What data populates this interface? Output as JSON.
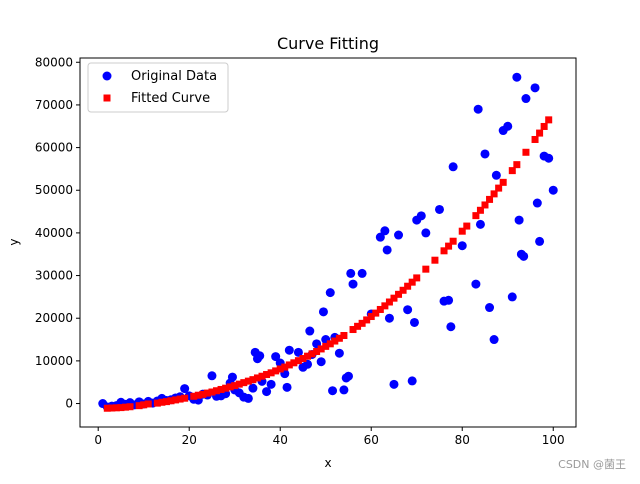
{
  "chart_data": {
    "type": "scatter",
    "title": "Curve Fitting",
    "xlabel": "x",
    "ylabel": "y",
    "xlim": [
      -4,
      105
    ],
    "ylim": [
      -5500,
      81000
    ],
    "xticks": [
      0,
      20,
      40,
      60,
      80,
      100
    ],
    "xtick_labels": [
      "0",
      "20",
      "40",
      "60",
      "80",
      "100"
    ],
    "yticks": [
      0,
      10000,
      20000,
      30000,
      40000,
      50000,
      60000,
      70000,
      80000
    ],
    "ytick_labels": [
      "0",
      "10000",
      "20000",
      "30000",
      "40000",
      "50000",
      "60000",
      "70000",
      "80000"
    ],
    "grid": false,
    "legend_position": "top-left",
    "series": [
      {
        "name": "Original Data",
        "marker": "circle",
        "color": "#0000ff",
        "points": [
          [
            1,
            0
          ],
          [
            2,
            -800
          ],
          [
            3,
            -600
          ],
          [
            4,
            -500
          ],
          [
            5,
            300
          ],
          [
            6,
            -200
          ],
          [
            7,
            200
          ],
          [
            8,
            -300
          ],
          [
            9,
            400
          ],
          [
            10,
            -100
          ],
          [
            11,
            500
          ],
          [
            12,
            100
          ],
          [
            13,
            600
          ],
          [
            14,
            1200
          ],
          [
            15,
            700
          ],
          [
            16,
            900
          ],
          [
            17,
            1300
          ],
          [
            18,
            1600
          ],
          [
            19,
            3500
          ],
          [
            20,
            1800
          ],
          [
            21,
            1000
          ],
          [
            22,
            800
          ],
          [
            23,
            2200
          ],
          [
            24,
            2000
          ],
          [
            25,
            6500
          ],
          [
            26,
            1700
          ],
          [
            27,
            1800
          ],
          [
            28,
            2300
          ],
          [
            29,
            4800
          ],
          [
            29.5,
            6200
          ],
          [
            30,
            3200
          ],
          [
            31,
            2500
          ],
          [
            32,
            1500
          ],
          [
            33,
            1200
          ],
          [
            34,
            3600
          ],
          [
            34.5,
            12000
          ],
          [
            35,
            10500
          ],
          [
            35.5,
            11200
          ],
          [
            36,
            5200
          ],
          [
            37,
            2800
          ],
          [
            38,
            4500
          ],
          [
            39,
            11000
          ],
          [
            40,
            9500
          ],
          [
            41,
            7000
          ],
          [
            41.5,
            3800
          ],
          [
            42,
            12500
          ],
          [
            44,
            12000
          ],
          [
            45,
            8500
          ],
          [
            46,
            9200
          ],
          [
            46.5,
            17000
          ],
          [
            47,
            11500
          ],
          [
            48,
            14000
          ],
          [
            49,
            9800
          ],
          [
            49.5,
            21500
          ],
          [
            50,
            15000
          ],
          [
            51,
            26000
          ],
          [
            51.5,
            3000
          ],
          [
            52,
            15500
          ],
          [
            53,
            11800
          ],
          [
            54,
            3200
          ],
          [
            54.5,
            6000
          ],
          [
            55,
            6400
          ],
          [
            55.5,
            30500
          ],
          [
            56,
            28000
          ],
          [
            58,
            30500
          ],
          [
            60,
            21000
          ],
          [
            62,
            39000
          ],
          [
            63,
            40500
          ],
          [
            63.5,
            36000
          ],
          [
            64,
            20000
          ],
          [
            65,
            4500
          ],
          [
            66,
            39500
          ],
          [
            68,
            22000
          ],
          [
            69,
            5300
          ],
          [
            69.5,
            19000
          ],
          [
            70,
            43000
          ],
          [
            71,
            44000
          ],
          [
            72,
            40000
          ],
          [
            75,
            45500
          ],
          [
            76,
            24000
          ],
          [
            77,
            24200
          ],
          [
            77.5,
            18000
          ],
          [
            78,
            55500
          ],
          [
            80,
            37000
          ],
          [
            83,
            28000
          ],
          [
            83.5,
            69000
          ],
          [
            84,
            42000
          ],
          [
            85,
            58500
          ],
          [
            86,
            22500
          ],
          [
            87,
            15000
          ],
          [
            87.5,
            53500
          ],
          [
            89,
            64000
          ],
          [
            90,
            65000
          ],
          [
            91,
            25000
          ],
          [
            92,
            76500
          ],
          [
            92.5,
            43000
          ],
          [
            93,
            35000
          ],
          [
            93.5,
            34500
          ],
          [
            94,
            71500
          ],
          [
            96,
            74000
          ],
          [
            96.5,
            47000
          ],
          [
            97,
            38000
          ],
          [
            98,
            58000
          ],
          [
            99,
            57500
          ],
          [
            100,
            50000
          ]
        ]
      },
      {
        "name": "Fitted Curve",
        "marker": "square",
        "color": "#ff0000",
        "points": [
          [
            2,
            -1100
          ],
          [
            3,
            -1050
          ],
          [
            4,
            -1000
          ],
          [
            5,
            -950
          ],
          [
            6,
            -850
          ],
          [
            7,
            -750
          ],
          [
            9,
            -500
          ],
          [
            10,
            -300
          ],
          [
            11,
            -100
          ],
          [
            13,
            100
          ],
          [
            14,
            300
          ],
          [
            15,
            450
          ],
          [
            16,
            650
          ],
          [
            17,
            850
          ],
          [
            18,
            1050
          ],
          [
            19,
            1250
          ],
          [
            21,
            1700
          ],
          [
            22,
            1950
          ],
          [
            23,
            2150
          ],
          [
            24,
            2450
          ],
          [
            25,
            2700
          ],
          [
            26,
            3000
          ],
          [
            27,
            3300
          ],
          [
            28,
            3600
          ],
          [
            29,
            3900
          ],
          [
            30,
            4200
          ],
          [
            31,
            4550
          ],
          [
            32,
            4900
          ],
          [
            33,
            5250
          ],
          [
            34,
            5600
          ],
          [
            35,
            6000
          ],
          [
            36,
            6400
          ],
          [
            37,
            6800
          ],
          [
            38,
            7200
          ],
          [
            39,
            7650
          ],
          [
            40,
            8100
          ],
          [
            41,
            8550
          ],
          [
            42,
            9050
          ],
          [
            43,
            9550
          ],
          [
            44,
            10050
          ],
          [
            45,
            10550
          ],
          [
            46,
            11100
          ],
          [
            47,
            11650
          ],
          [
            48,
            12200
          ],
          [
            49,
            12800
          ],
          [
            50,
            13400
          ],
          [
            51,
            14000
          ],
          [
            52,
            14650
          ],
          [
            53,
            15300
          ],
          [
            54,
            15950
          ],
          [
            56,
            17350
          ],
          [
            57,
            18100
          ],
          [
            58,
            18800
          ],
          [
            59,
            19600
          ],
          [
            60,
            20400
          ],
          [
            61,
            21200
          ],
          [
            62,
            22050
          ],
          [
            63,
            22900
          ],
          [
            64,
            23800
          ],
          [
            65,
            24700
          ],
          [
            66,
            25600
          ],
          [
            67,
            26550
          ],
          [
            68,
            27500
          ],
          [
            69,
            28450
          ],
          [
            70,
            29450
          ],
          [
            72,
            31500
          ],
          [
            74,
            33600
          ],
          [
            76,
            35800
          ],
          [
            77,
            36900
          ],
          [
            78,
            38050
          ],
          [
            80,
            40400
          ],
          [
            81,
            41600
          ],
          [
            83,
            44050
          ],
          [
            84,
            45300
          ],
          [
            85,
            46550
          ],
          [
            86,
            47850
          ],
          [
            87,
            49150
          ],
          [
            88,
            50500
          ],
          [
            89,
            51850
          ],
          [
            91,
            54600
          ],
          [
            92,
            56000
          ],
          [
            94,
            58900
          ],
          [
            96,
            61900
          ],
          [
            97,
            63400
          ],
          [
            98,
            64950
          ],
          [
            99,
            66500
          ]
        ]
      }
    ]
  },
  "watermark": "CSDN @菌王"
}
